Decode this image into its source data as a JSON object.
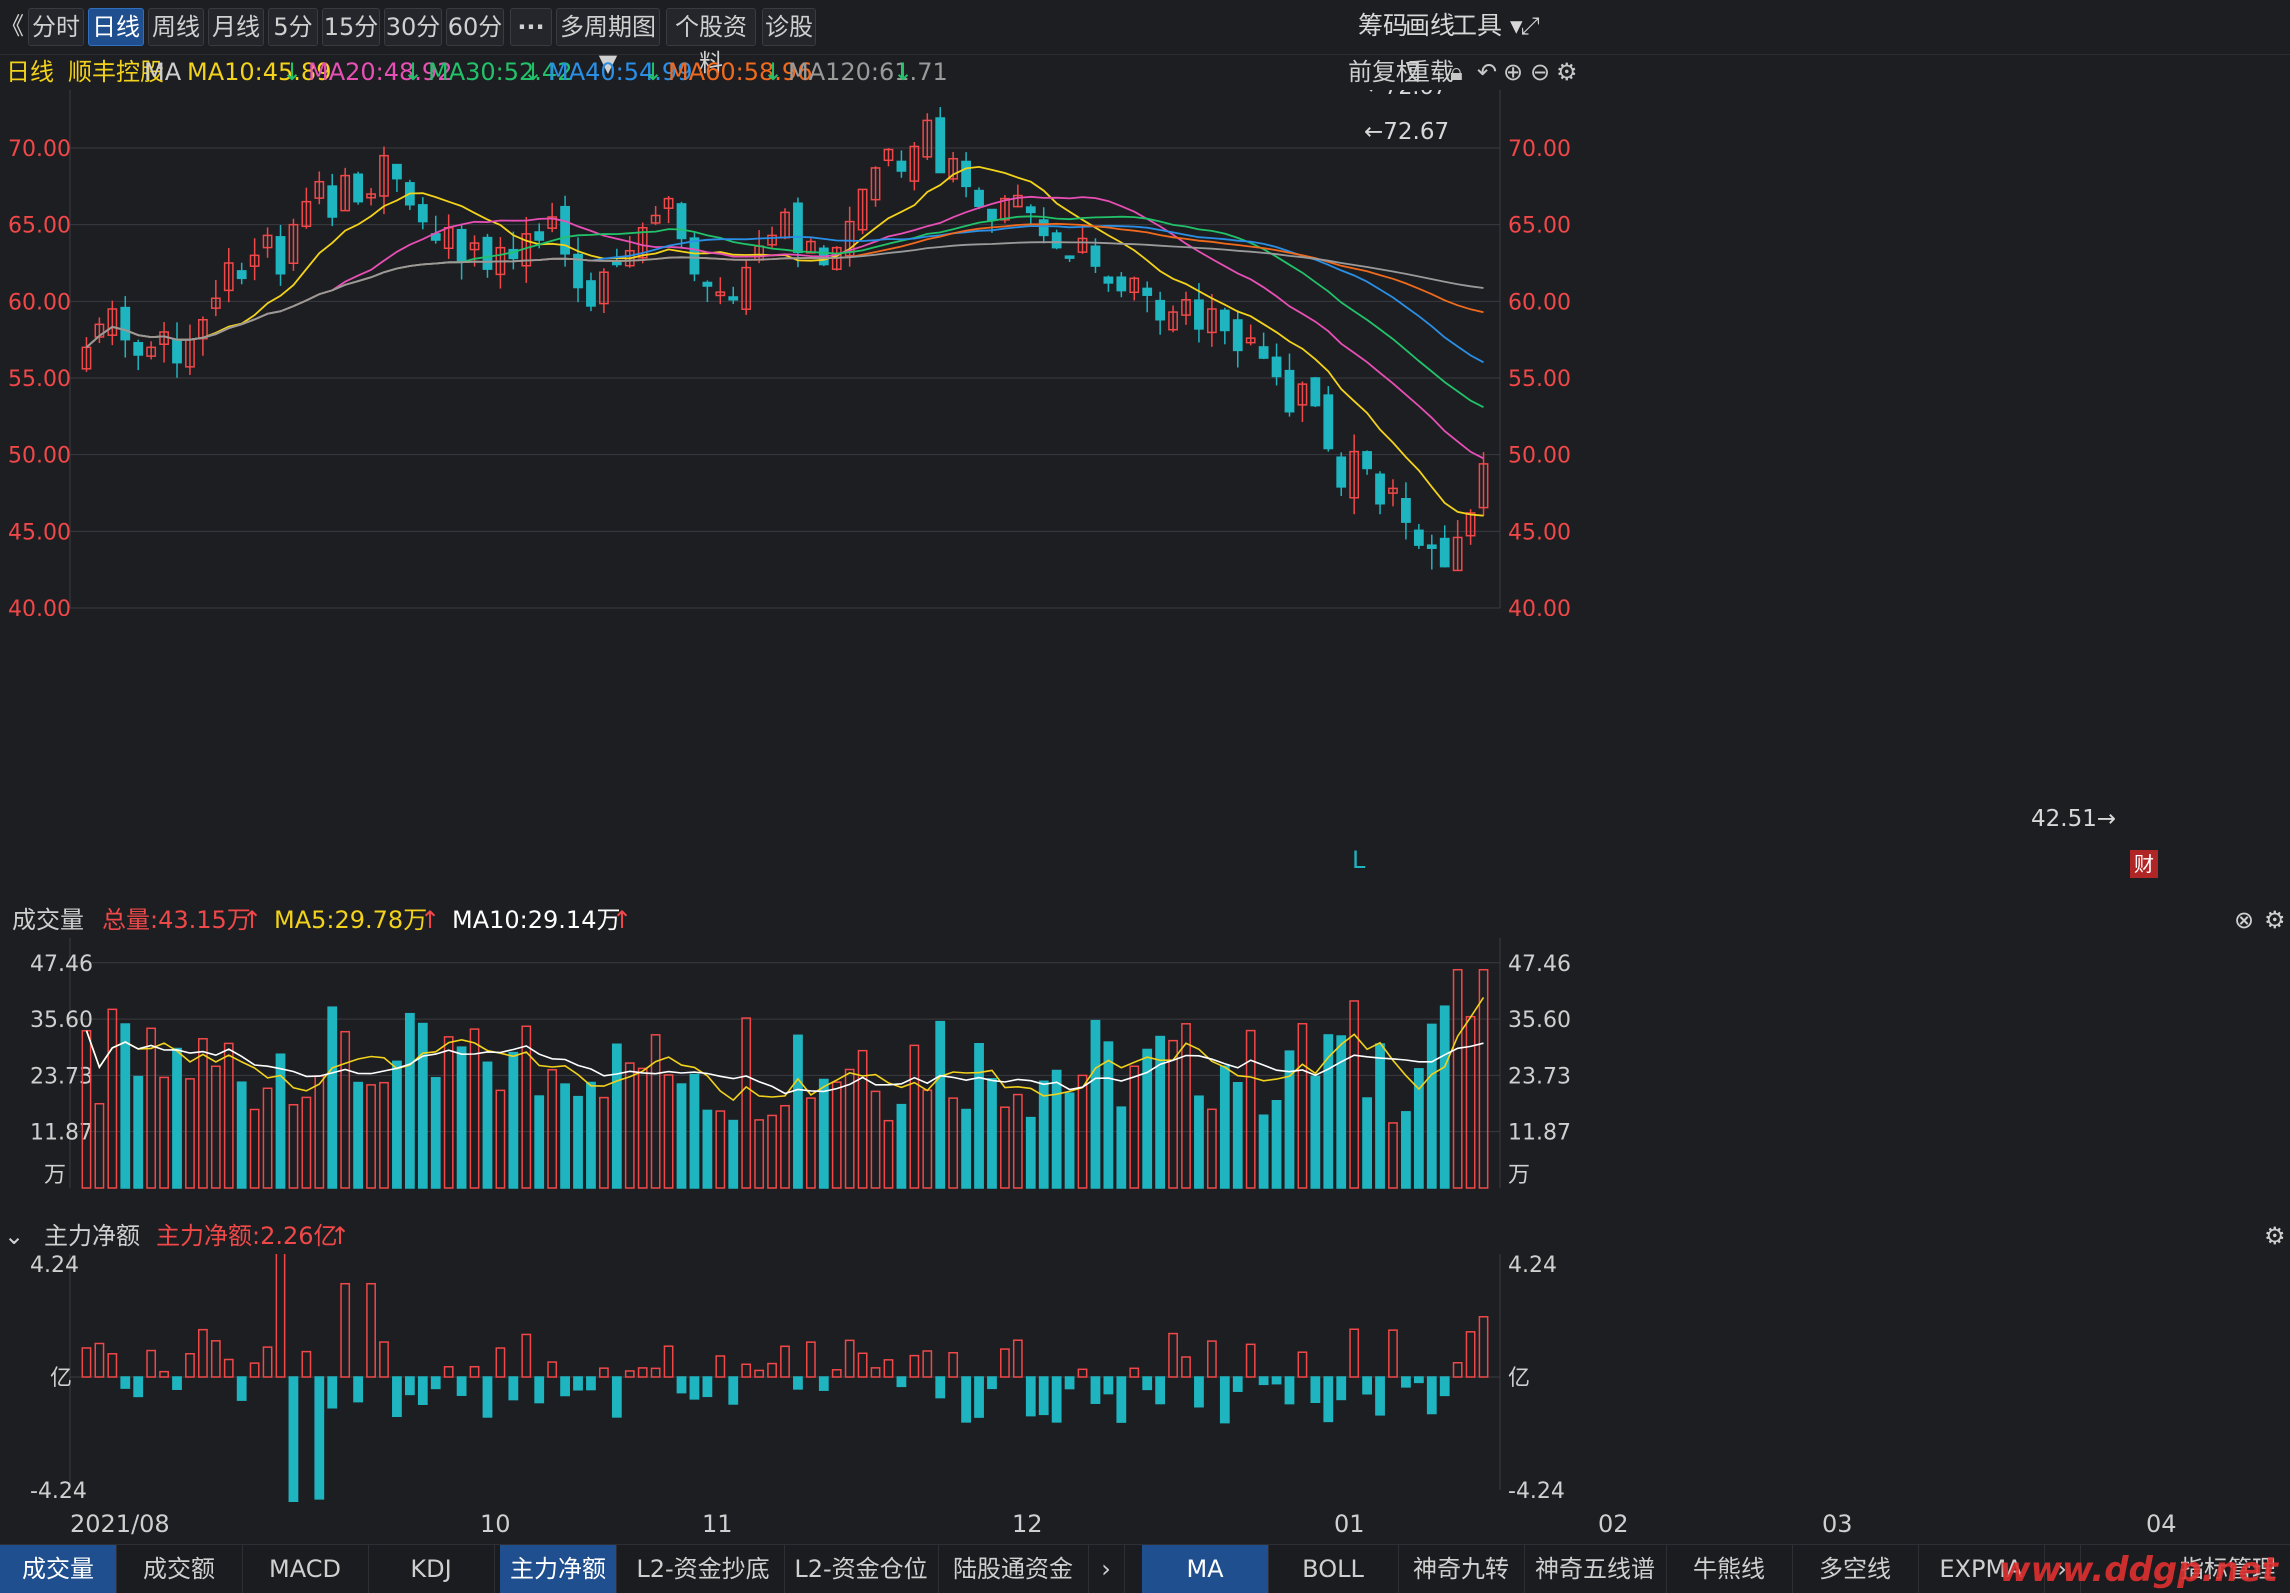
{
  "toolbar": {
    "back_glyph": "《",
    "periods": [
      "分时",
      "日线",
      "周线",
      "月线",
      "5分",
      "15分",
      "30分",
      "60分",
      "···",
      "多周期图 ▼",
      "个股资料",
      "诊股"
    ],
    "active_period": "日线",
    "right": [
      "筹码",
      "画线",
      "工具 ▾"
    ]
  },
  "info": {
    "period": "日线",
    "stock": "顺丰控股",
    "indicator": "MA",
    "ma": [
      {
        "label": "MA10:45.89",
        "color": "#f2d21b"
      },
      {
        "label": "MA20:48.92",
        "color": "#e74fb5"
      },
      {
        "label": "MA30:52.42",
        "color": "#22c26a"
      },
      {
        "label": "MA40:54.99",
        "color": "#2a8fe6"
      },
      {
        "label": "MA60:58.96",
        "color": "#f06a1e"
      },
      {
        "label": "MA120:61.71",
        "color": "#9a9a9a"
      }
    ],
    "right": [
      "前复权",
      "重载"
    ]
  },
  "price_axis": [
    "70.00",
    "65.00",
    "60.00",
    "55.00",
    "50.00",
    "45.00",
    "40.00"
  ],
  "annotations": {
    "high": "←72.67",
    "low": "42.51→",
    "marker": "L",
    "fin": "财"
  },
  "volume": {
    "title": "成交量",
    "total": "总量:43.15万",
    "ma5": "MA5:29.78万",
    "ma10": "MA10:29.14万",
    "axis": [
      "47.46",
      "35.60",
      "23.73",
      "11.87",
      "万"
    ]
  },
  "flow": {
    "title": "主力净额",
    "value": "主力净额:2.26亿",
    "axis": [
      "4.24",
      "亿",
      "-4.24"
    ]
  },
  "date_axis": [
    "2021/08",
    "10",
    "11",
    "12",
    "01",
    "02",
    "03",
    "04"
  ],
  "colors": {
    "up": "#f04848",
    "down": "#1fb5c0",
    "grid": "#3a3b40",
    "axis_text": "#f04848"
  },
  "bottom_tabs_left": [
    "成交量",
    "成交额",
    "MACD",
    "KDJ",
    "主力净额",
    "L2-资金抄底",
    "L2-资金仓位",
    "陆股通资金"
  ],
  "bottom_tabs_right": [
    "MA",
    "BOLL",
    "神奇九转",
    "神奇五线谱",
    "牛熊线",
    "多空线",
    "EXPMA",
    "指标管理"
  ],
  "watermark": "www.ddgp.net",
  "chart_data": {
    "type": "candlestick",
    "price_range": [
      40,
      73
    ],
    "high": 72.67,
    "low": 42.51,
    "close_trend": [
      57,
      58.5,
      59.5,
      57.5,
      56.5,
      57,
      58,
      56,
      57.5,
      58.8,
      60.2,
      62.5,
      61.5,
      63,
      64.3,
      61.8,
      65,
      66.5,
      67.8,
      65.5,
      68.2,
      66.5,
      67,
      69.5,
      68,
      66.3,
      65.2,
      64,
      64.8,
      62.6,
      63.8,
      62.1,
      63.5,
      62.8,
      64.4,
      64,
      65.5,
      63.1,
      60.9,
      59.7,
      61.9,
      62.4,
      63.3,
      64.8,
      65.6,
      66.7,
      64.1,
      61.8,
      61,
      60.6,
      60.1,
      62.2,
      63.6,
      64.3,
      65.8,
      63.2,
      63.9,
      62.4,
      63.5,
      65.2,
      67.3,
      68.7,
      69.9,
      68.5,
      70.1,
      71.8,
      68.4,
      69.3,
      67.5,
      66.2,
      65.3,
      66.7,
      66.9,
      65.8,
      64.3,
      63.5,
      62.9,
      64.1,
      62.3,
      61.2,
      60.7,
      61.5,
      60.4,
      58.8,
      59.3,
      60.1,
      58.2,
      59.5,
      58.1,
      56.8,
      57.6,
      56.3,
      55.1,
      52.8,
      54.6,
      53.2,
      50.4,
      47.9,
      50.2,
      49.1,
      46.8,
      47.8,
      45.6,
      44.1,
      43.9,
      42.7,
      44.6,
      46.2,
      49.4
    ],
    "volume_axis": [
      47.46,
      35.6,
      23.73,
      11.87
    ],
    "volume_unit": "万",
    "flow_axis": [
      4.24,
      -4.24
    ],
    "flow_unit": "亿"
  }
}
